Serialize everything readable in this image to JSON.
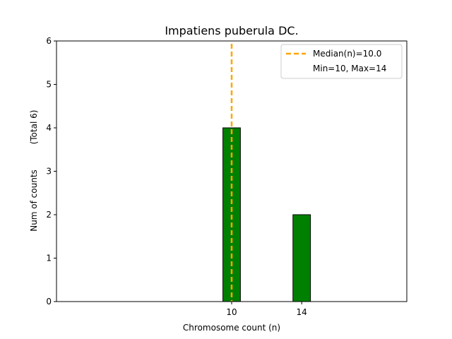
{
  "chart_data": {
    "type": "bar",
    "title": "Impatiens puberula DC.",
    "xlabel": "Chromosome count (n)",
    "ylabel": "Num of counts",
    "ylabel_total": "(Total 6)",
    "categories": [
      "10",
      "14"
    ],
    "x": [
      10,
      14
    ],
    "values": [
      4,
      2
    ],
    "xlim": [
      0,
      20
    ],
    "ylim": [
      0,
      6
    ],
    "yticks": [
      0,
      1,
      2,
      3,
      4,
      5,
      6
    ],
    "xticks": [
      10,
      14
    ],
    "baseline_x_end": 17.5,
    "median": 10.0,
    "legend": {
      "position": "top-right",
      "entries": [
        "Median(n)=10.0",
        "Min=10, Max=14"
      ]
    },
    "colors": {
      "bar": "#008000",
      "bar_edge": "#000000",
      "median_line": "#FFA500"
    },
    "grid": false
  }
}
